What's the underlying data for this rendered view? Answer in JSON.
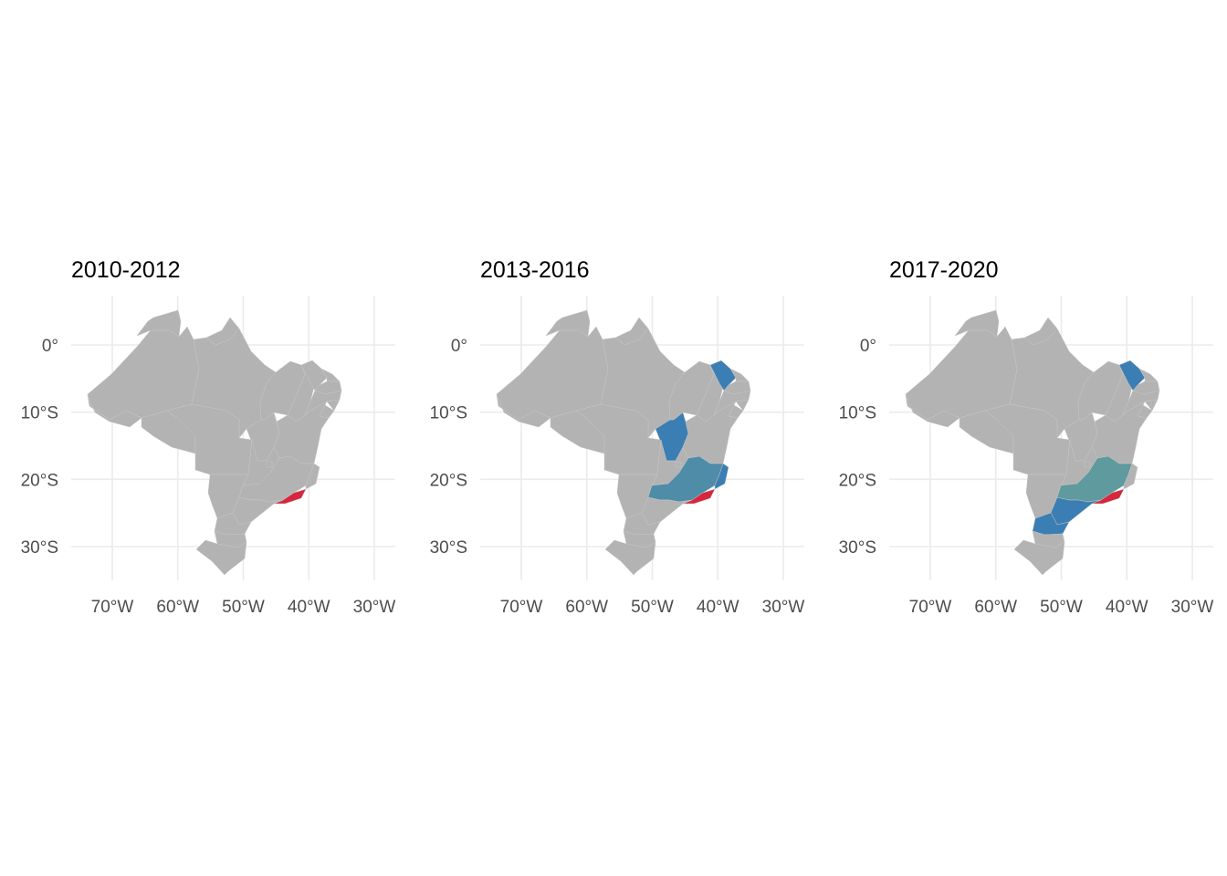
{
  "map": {
    "panels": [
      {
        "title": "2010-2012",
        "highlights": {
          "RJ": "red"
        }
      },
      {
        "title": "2013-2016",
        "highlights": {
          "RJ": "red",
          "ES": "blue",
          "CE": "blue",
          "TO": "blue",
          "MG": "teal_blue"
        }
      },
      {
        "title": "2017-2020",
        "highlights": {
          "RJ": "red",
          "CE": "blue",
          "SP": "blue",
          "PR": "blue",
          "MG": "teal"
        }
      }
    ],
    "y_ticks": [
      "0°",
      "10°S",
      "20°S",
      "30°S"
    ],
    "x_ticks": [
      "70°W",
      "60°W",
      "50°W",
      "40°W",
      "30°W"
    ],
    "lat_values": [
      0,
      -10,
      -20,
      -30
    ],
    "lon_values": [
      -70,
      -60,
      -50,
      -40,
      -30
    ],
    "colors": {
      "base": "#b3b3b3",
      "red": "#d7263d",
      "blue": "#3b7eb3",
      "teal_blue": "#4f8ca8",
      "teal": "#5e9a9e",
      "grid": "#ebebeb",
      "tick_text": "#4d4d4d",
      "title_text": "#000000"
    }
  }
}
